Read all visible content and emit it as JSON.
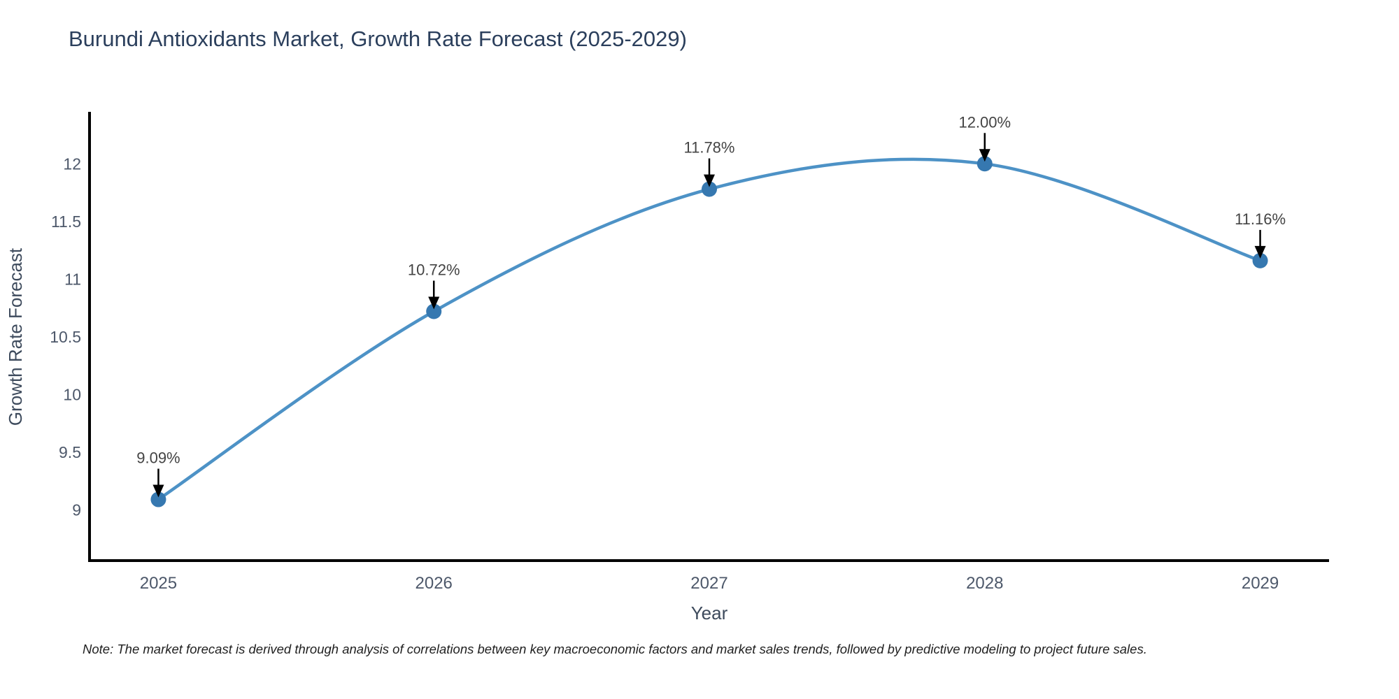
{
  "title": "Burundi Antioxidants Market, Growth Rate Forecast (2025-2029)",
  "footnote": "Note: The market forecast is derived through analysis of correlations between key macroeconomic factors and market sales trends, followed by predictive modeling to project future sales.",
  "chart_data": {
    "type": "line",
    "line_shape": "spline",
    "title": "Burundi Antioxidants Market, Growth Rate Forecast (2025-2029)",
    "xlabel": "Year",
    "ylabel": "Growth Rate Forecast",
    "x": [
      2025,
      2026,
      2027,
      2028,
      2029
    ],
    "y": [
      9.09,
      10.72,
      11.78,
      12.0,
      11.16
    ],
    "point_labels": [
      "9.09%",
      "10.72%",
      "11.78%",
      "12.00%",
      "11.16%"
    ],
    "x_tick_labels": [
      "2025",
      "2026",
      "2027",
      "2028",
      "2029"
    ],
    "y_ticks": [
      9,
      9.5,
      10,
      10.5,
      11,
      11.5,
      12
    ],
    "y_tick_labels": [
      "9",
      "9.5",
      "10",
      "10.5",
      "11",
      "11.5",
      "12"
    ],
    "xlim": [
      2024.75,
      2029.25
    ],
    "ylim": [
      8.56,
      12.45
    ],
    "grid": false,
    "legend": "none",
    "colors": {
      "line": "#4d92c6",
      "marker": "#3678b0",
      "axis": "#000000",
      "arrow": "#000000",
      "annotation_text": "#444444",
      "tick_text": "#4d586a",
      "title_text": "#2b3f5c"
    }
  }
}
